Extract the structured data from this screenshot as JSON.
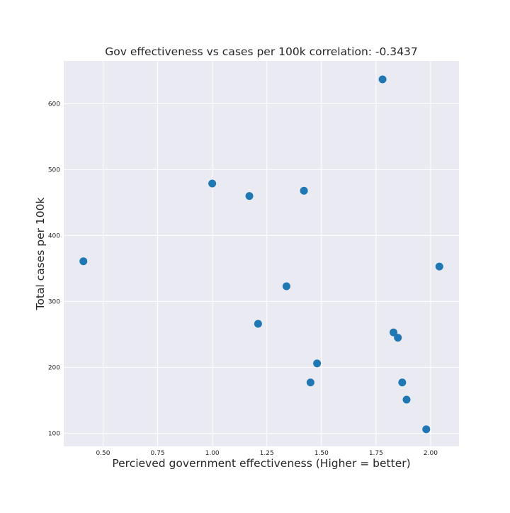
{
  "chart_data": {
    "type": "scatter",
    "title": "Gov effectiveness vs cases per 100k correlation: -0.3437",
    "xlabel": "Percieved government effectiveness (Higher = better)",
    "ylabel": "Total cases per 100k",
    "xlim": [
      0.32,
      2.13
    ],
    "ylim": [
      80,
      665
    ],
    "xticks": [
      0.5,
      0.75,
      1.0,
      1.25,
      1.5,
      1.75,
      2.0
    ],
    "xtick_labels": [
      "0.50",
      "0.75",
      "1.00",
      "1.25",
      "1.50",
      "1.75",
      "2.00"
    ],
    "yticks": [
      100,
      200,
      300,
      400,
      500,
      600
    ],
    "ytick_labels": [
      "100",
      "200",
      "300",
      "400",
      "500",
      "600"
    ],
    "grid": true,
    "background_color": "#eaeaf2",
    "grid_color": "#ffffff",
    "marker_color": "#1f77b4",
    "points": [
      {
        "x": 0.41,
        "y": 361
      },
      {
        "x": 1.0,
        "y": 479
      },
      {
        "x": 1.17,
        "y": 460
      },
      {
        "x": 1.21,
        "y": 266
      },
      {
        "x": 1.34,
        "y": 323
      },
      {
        "x": 1.42,
        "y": 468
      },
      {
        "x": 1.45,
        "y": 177
      },
      {
        "x": 1.48,
        "y": 206
      },
      {
        "x": 1.78,
        "y": 637
      },
      {
        "x": 1.83,
        "y": 253
      },
      {
        "x": 1.85,
        "y": 245
      },
      {
        "x": 1.87,
        "y": 177
      },
      {
        "x": 1.89,
        "y": 151
      },
      {
        "x": 1.98,
        "y": 106
      },
      {
        "x": 2.04,
        "y": 353
      }
    ]
  }
}
